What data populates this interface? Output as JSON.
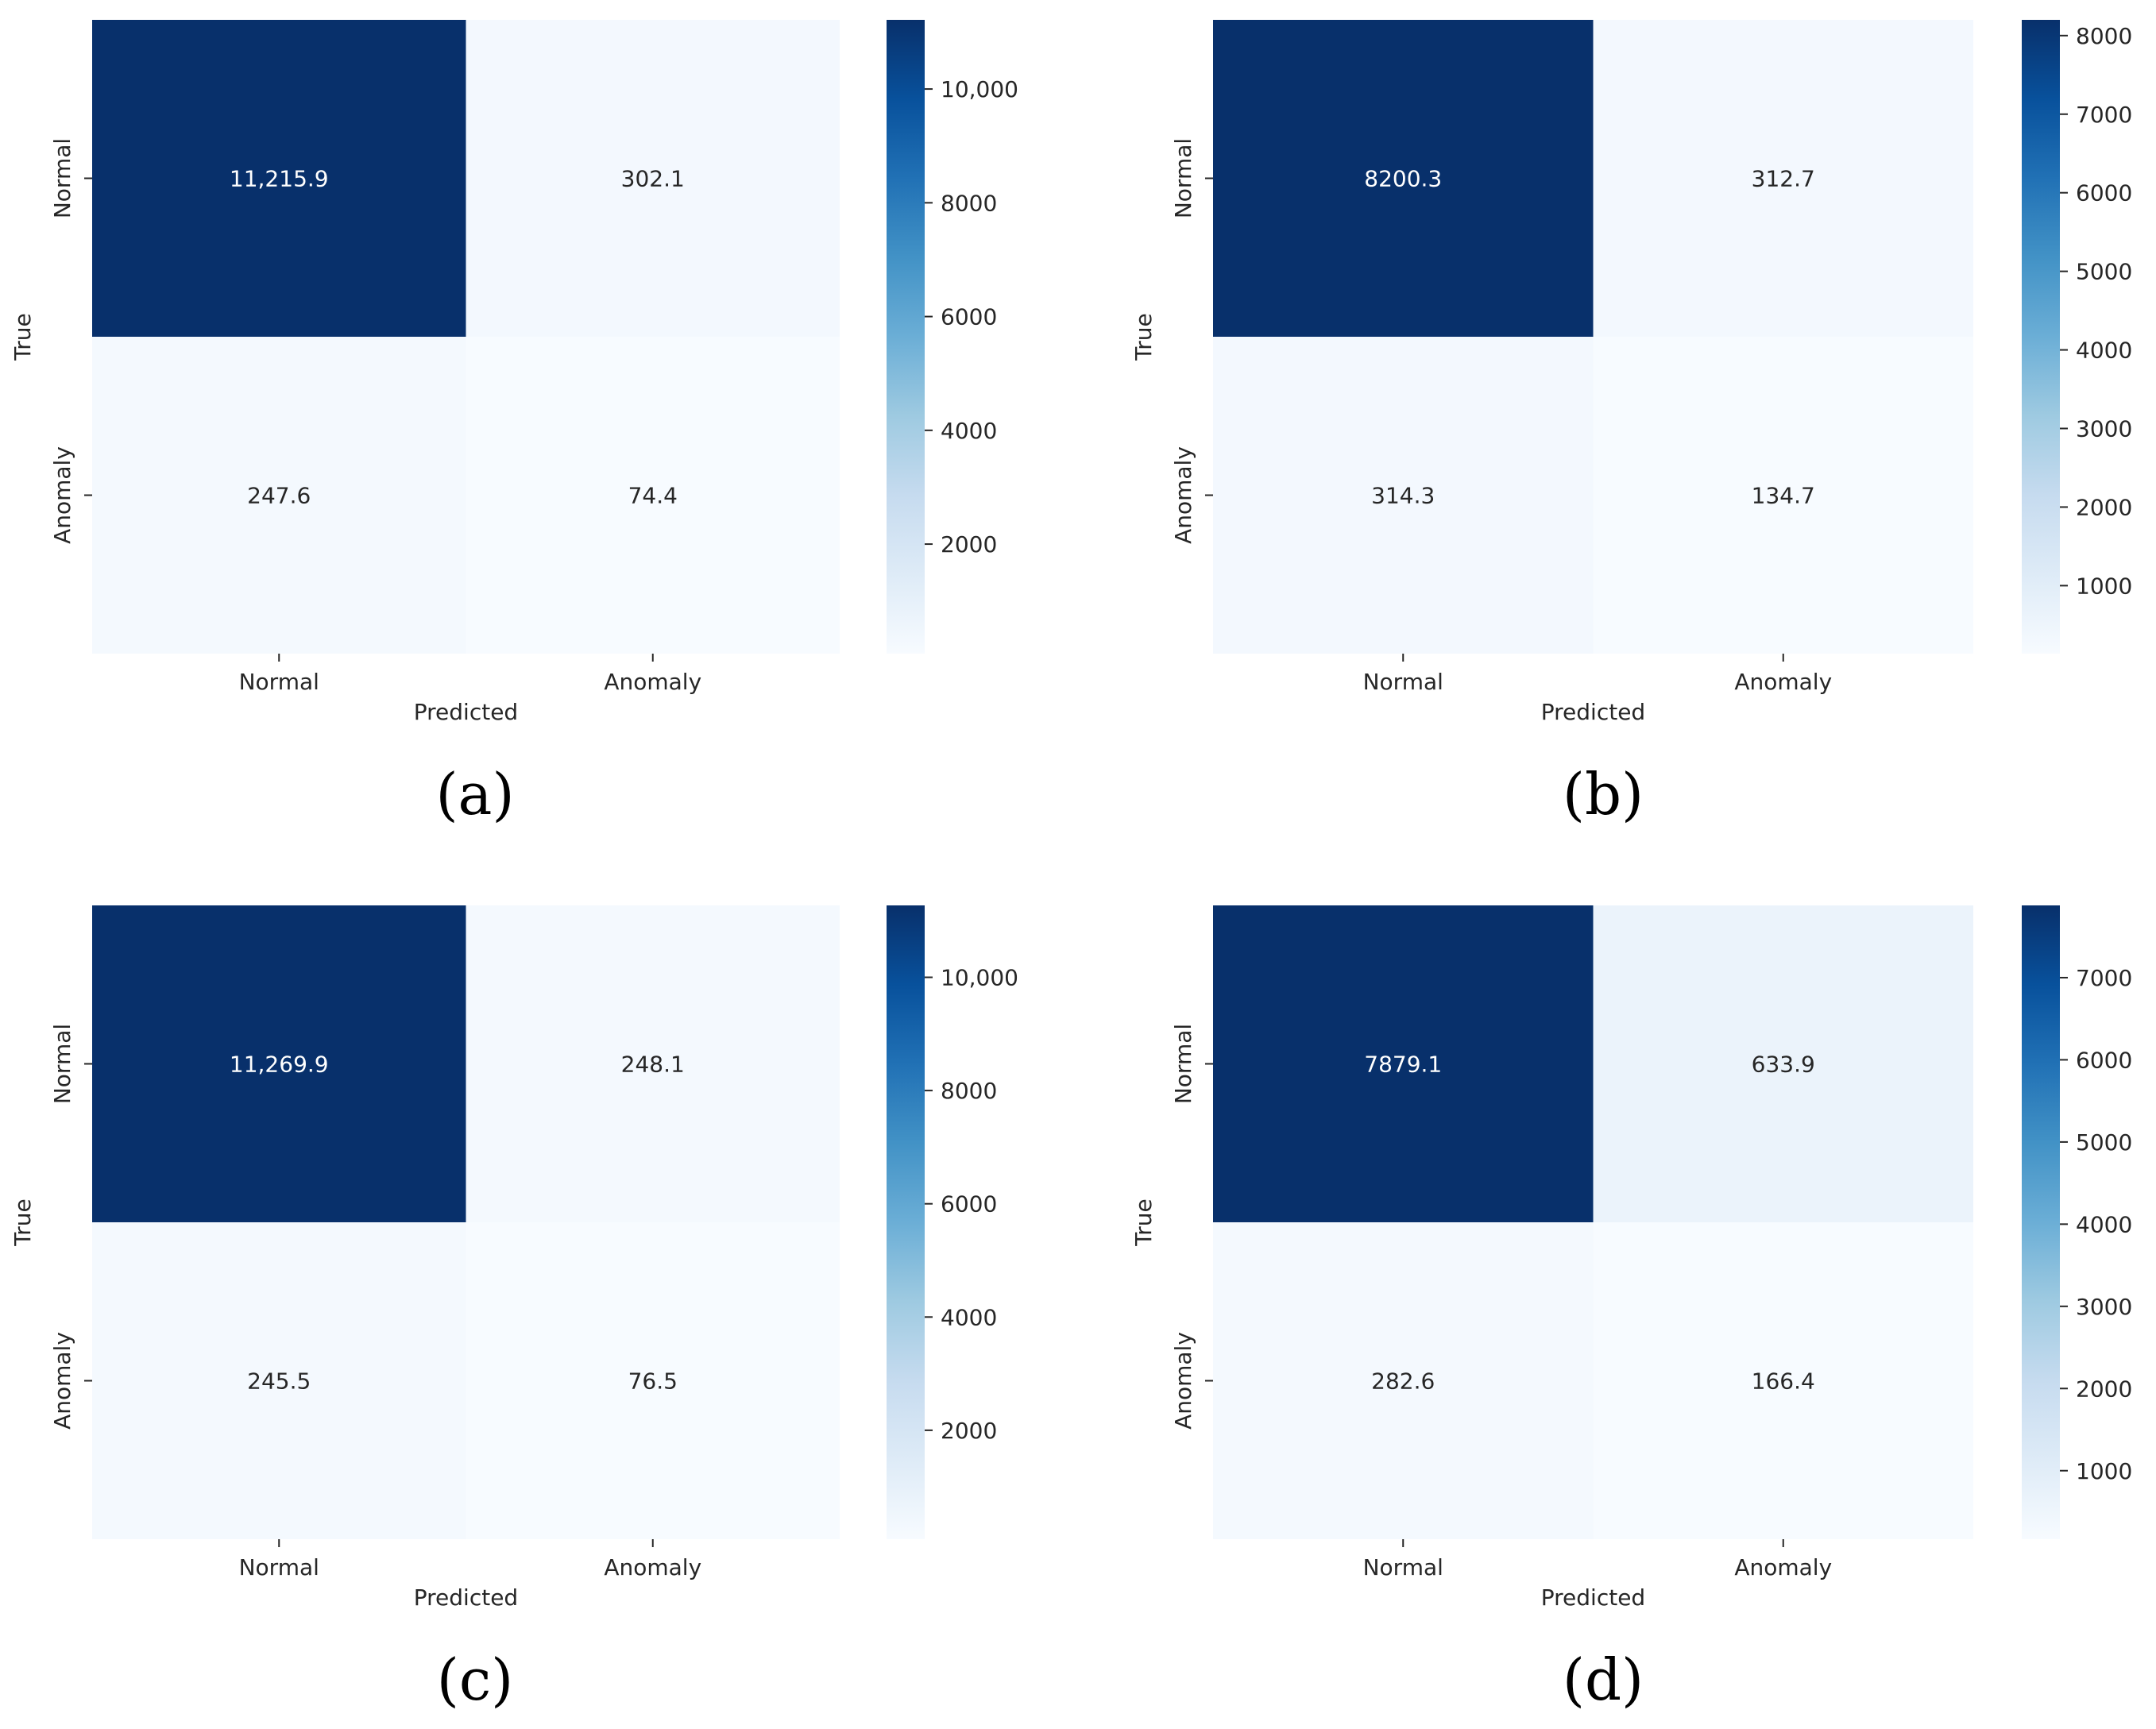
{
  "colormap": {
    "name": "Blues",
    "stops": [
      "#f7fbff",
      "#deebf7",
      "#c6dbef",
      "#9ecae1",
      "#6baed6",
      "#4292c6",
      "#2171b5",
      "#08519c",
      "#08306b"
    ],
    "light_text": "#ffffff",
    "dark_text": "#262626"
  },
  "chart_data": [
    {
      "type": "heatmap",
      "panel_label": "(a)",
      "xlabel": "Predicted",
      "ylabel": "True",
      "x_categories": [
        "Normal",
        "Anomaly"
      ],
      "y_categories": [
        "Normal",
        "Anomaly"
      ],
      "values": [
        [
          11215.9,
          302.1
        ],
        [
          247.6,
          74.4
        ]
      ],
      "cell_labels": [
        [
          "11,215.9",
          "302.1"
        ],
        [
          "247.6",
          "74.4"
        ]
      ],
      "colorbar": {
        "vmin": 74.4,
        "vmax": 11215.9,
        "ticks": [
          2000,
          4000,
          6000,
          8000,
          10000
        ],
        "tick_labels": [
          "2000",
          "4000",
          "6000",
          "8000",
          "10,000"
        ]
      }
    },
    {
      "type": "heatmap",
      "panel_label": "(b)",
      "xlabel": "Predicted",
      "ylabel": "True",
      "x_categories": [
        "Normal",
        "Anomaly"
      ],
      "y_categories": [
        "Normal",
        "Anomaly"
      ],
      "values": [
        [
          8200.3,
          312.7
        ],
        [
          314.3,
          134.7
        ]
      ],
      "cell_labels": [
        [
          "8200.3",
          "312.7"
        ],
        [
          "314.3",
          "134.7"
        ]
      ],
      "colorbar": {
        "vmin": 134.7,
        "vmax": 8200.3,
        "ticks": [
          1000,
          2000,
          3000,
          4000,
          5000,
          6000,
          7000,
          8000
        ],
        "tick_labels": [
          "1000",
          "2000",
          "3000",
          "4000",
          "5000",
          "6000",
          "7000",
          "8000"
        ]
      }
    },
    {
      "type": "heatmap",
      "panel_label": "(c)",
      "xlabel": "Predicted",
      "ylabel": "True",
      "x_categories": [
        "Normal",
        "Anomaly"
      ],
      "y_categories": [
        "Normal",
        "Anomaly"
      ],
      "values": [
        [
          11269.9,
          248.1
        ],
        [
          245.5,
          76.5
        ]
      ],
      "cell_labels": [
        [
          "11,269.9",
          "248.1"
        ],
        [
          "245.5",
          "76.5"
        ]
      ],
      "colorbar": {
        "vmin": 76.5,
        "vmax": 11269.9,
        "ticks": [
          2000,
          4000,
          6000,
          8000,
          10000
        ],
        "tick_labels": [
          "2000",
          "4000",
          "6000",
          "8000",
          "10,000"
        ]
      }
    },
    {
      "type": "heatmap",
      "panel_label": "(d)",
      "xlabel": "Predicted",
      "ylabel": "True",
      "x_categories": [
        "Normal",
        "Anomaly"
      ],
      "y_categories": [
        "Normal",
        "Anomaly"
      ],
      "values": [
        [
          7879.1,
          633.9
        ],
        [
          282.6,
          166.4
        ]
      ],
      "cell_labels": [
        [
          "7879.1",
          "633.9"
        ],
        [
          "282.6",
          "166.4"
        ]
      ],
      "colorbar": {
        "vmin": 166.4,
        "vmax": 7879.1,
        "ticks": [
          1000,
          2000,
          3000,
          4000,
          5000,
          6000,
          7000
        ],
        "tick_labels": [
          "1000",
          "2000",
          "3000",
          "4000",
          "5000",
          "6000",
          "7000"
        ]
      }
    }
  ]
}
